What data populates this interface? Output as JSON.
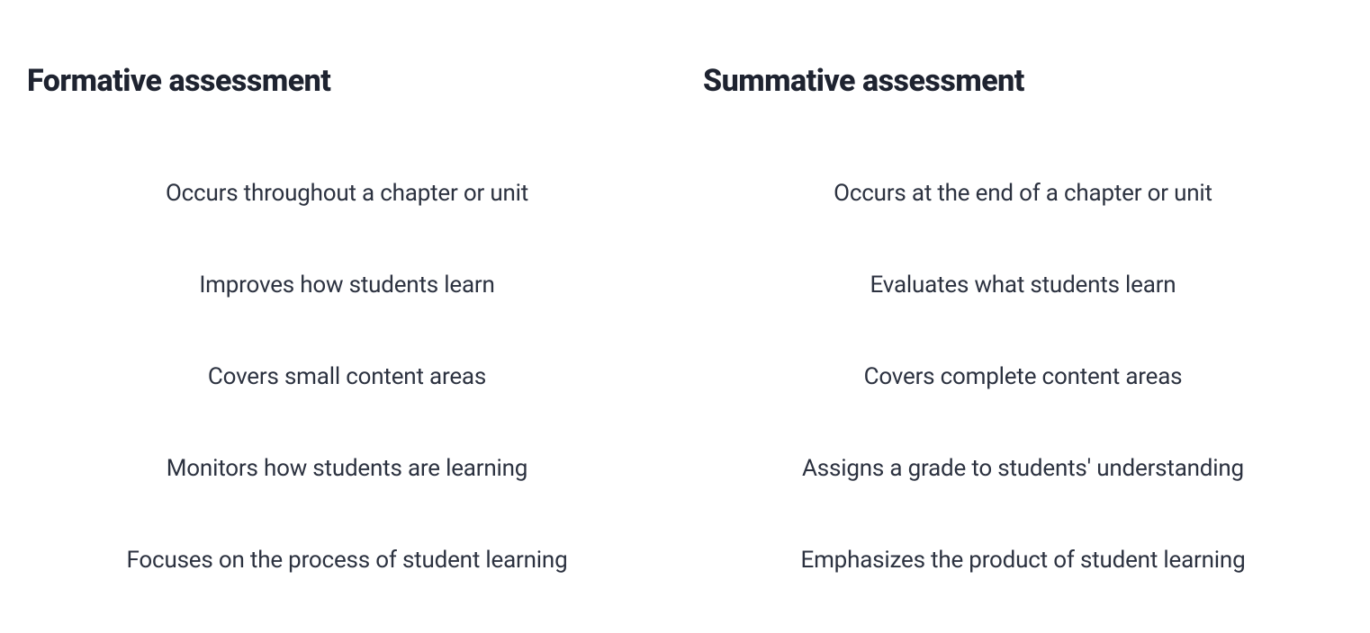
{
  "styling": {
    "background_color": "#ffffff",
    "heading_color": "#1e2330",
    "item_color": "#2c3240",
    "heading_fontsize": 34,
    "heading_fontweight": 800,
    "item_fontsize": 26,
    "item_fontweight": 400,
    "font_family": "-apple-system, BlinkMacSystemFont, Segoe UI, Roboto, Helvetica Neue, Arial, sans-serif",
    "column_gap": 40,
    "item_gap": 72,
    "heading_margin_bottom": 90
  },
  "columns": [
    {
      "heading": "Formative assessment",
      "items": [
        "Occurs throughout a chapter or unit",
        "Improves how students learn",
        "Covers small content areas",
        "Monitors how students are learning",
        "Focuses on the process of student learning"
      ]
    },
    {
      "heading": "Summative assessment",
      "items": [
        "Occurs at the end of a chapter or unit",
        "Evaluates what students learn",
        "Covers complete content areas",
        "Assigns a grade to students' understanding",
        "Emphasizes the product of student learning"
      ]
    }
  ]
}
